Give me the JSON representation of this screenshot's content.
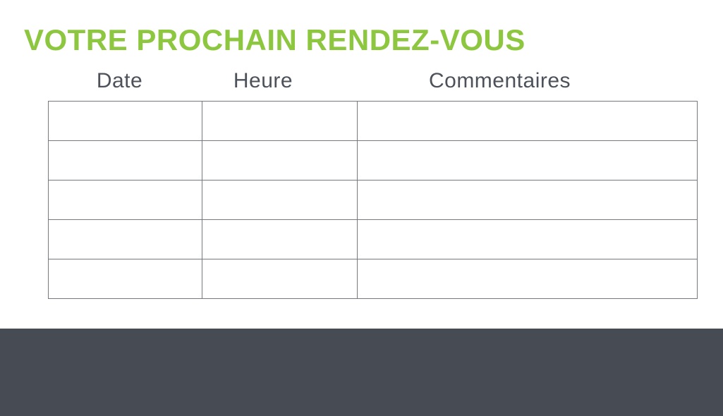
{
  "title": {
    "text": "VOTRE PROCHAIN RENDEZ-VOUS"
  },
  "colors": {
    "title_green": "#8dc63f",
    "header_text": "#4c515a",
    "table_border": "#75787e",
    "footer_background": "#474b54",
    "page_background": "#ffffff"
  },
  "table": {
    "columns": [
      {
        "label": "Date"
      },
      {
        "label": "Heure"
      },
      {
        "label": "Commentaires"
      }
    ],
    "rows": [
      [
        "",
        "",
        ""
      ],
      [
        "",
        "",
        ""
      ],
      [
        "",
        "",
        ""
      ],
      [
        "",
        "",
        ""
      ],
      [
        "",
        "",
        ""
      ]
    ]
  }
}
